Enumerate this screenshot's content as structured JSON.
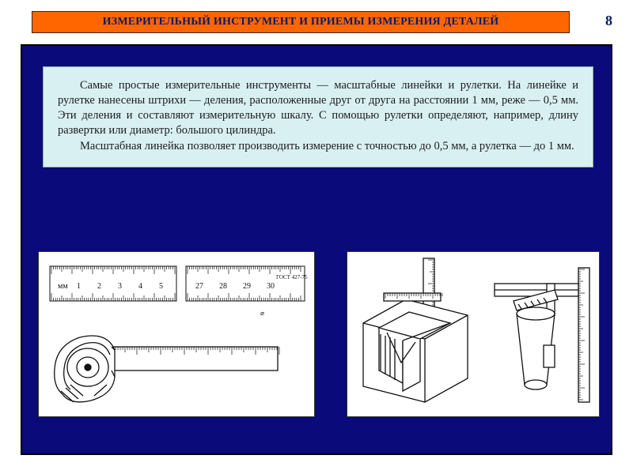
{
  "page_number": "8",
  "title": "ИЗМЕРИТЕЛЬНЫЙ ИНСТРУМЕНТ И ПРИЕМЫ ИЗМЕРЕНИЯ ДЕТАЛЕЙ",
  "paragraph1": "Самые простые измерительные инструменты — масштабные линейки и рулетки. На линейке и рулетке нанесены штрихи — деления, расположенные друг от друга на расстоянии 1 мм, реже — 0,5 мм. Эти деления и составляют измерительную шкалу. С помощью рулетки определяют, например, длину развертки или диаметр: большого цилиндра.",
  "paragraph2": "Масштабная линейка позволяет производить измерение с точностью до 0,5 мм, а рулетка — до 1 мм.",
  "ruler_left": {
    "label_mm": "мм",
    "ticks": [
      "1",
      "2",
      "3",
      "4",
      "5"
    ]
  },
  "ruler_right": {
    "ticks": [
      "27",
      "28",
      "29",
      "30"
    ],
    "gost": "ГОСТ 427-75"
  },
  "colors": {
    "orange": "#ff6600",
    "navy_text": "#0a1a66",
    "blue_panel": "#0a0a7a",
    "text_box_bg": "#d9f0f2",
    "stroke": "#111111"
  }
}
